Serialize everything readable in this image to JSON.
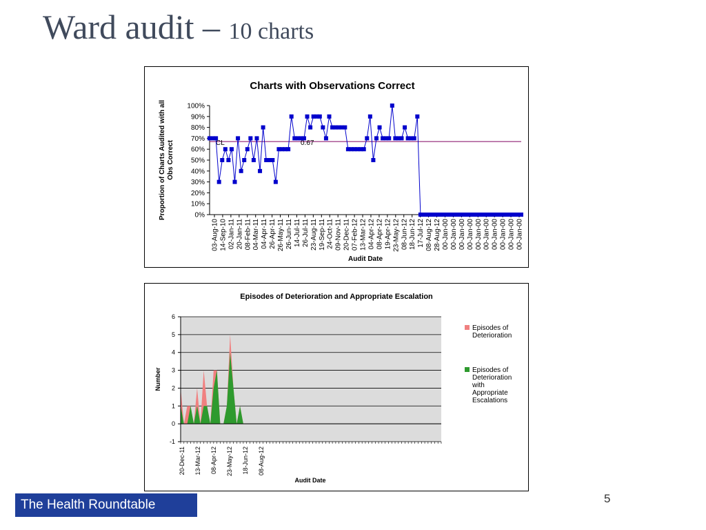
{
  "slide": {
    "title_main": "Ward audit – ",
    "title_sub": "10 charts",
    "brand": "The Health Roundtable",
    "page_number": "5"
  },
  "colors": {
    "title": "#404a5c",
    "series_blue": "#0000cc",
    "cl_line": "#800060",
    "episodes_pink": "#f08080",
    "escalation_green": "#2e9a2e",
    "plot_bg": "#dcdcdc",
    "brand_bg": "#1f3f9a"
  },
  "chart_data": [
    {
      "type": "line",
      "title": "Charts with Observations Correct",
      "xlabel": "Audit Date",
      "ylabel": "Proportion of Charts Audited with all Obs Correct",
      "ylim": [
        0,
        1
      ],
      "yticks": [
        "0%",
        "10%",
        "20%",
        "30%",
        "40%",
        "50%",
        "60%",
        "70%",
        "80%",
        "90%",
        "100%"
      ],
      "tick_labels": [
        "03-Aug-10",
        "14-Sep-10",
        "02-Jan-11",
        "20-Jan-11",
        "08-Feb-11",
        "04-Mar-11",
        "04-Apr-11",
        "26-Apr-11",
        "26-May-11",
        "26-Jun-11",
        "14-Jul-11",
        "26-Jul-11",
        "23-Aug-11",
        "19-Sep-11",
        "24-Oct-11",
        "09-Nov-11",
        "20-Dec-11",
        "07-Feb-12",
        "13-Mar-12",
        "04-Apr-12",
        "08-Apr-12",
        "19-Apr-12",
        "23-May-12",
        "08-Jun-12",
        "18-Jun-12",
        "17-Jul-12",
        "08-Aug-12",
        "28-Aug-12",
        "00-Jan-00",
        "00-Jan-00",
        "00-Jan-00",
        "00-Jan-00",
        "00-Jan-00",
        "00-Jan-00",
        "00-Jan-00",
        "00-Jan-00",
        "00-Jan-00",
        "00-Jan-00"
      ],
      "center_line": 0.67,
      "center_line_label": "CL",
      "center_line_value_label": "0.67",
      "series": [
        {
          "values": [
            0.7,
            0.7,
            0.7,
            0.3,
            0.5,
            0.6,
            0.5,
            0.6,
            0.3,
            0.7,
            0.4,
            0.5,
            0.6,
            0.7,
            0.5,
            0.7,
            0.4,
            0.8,
            0.5,
            0.5,
            0.5,
            0.3,
            0.6,
            0.6,
            0.6,
            0.6,
            0.9,
            0.7,
            0.7,
            0.7,
            0.7,
            0.9,
            0.8,
            0.9,
            0.9,
            0.9,
            0.8,
            0.7,
            0.9,
            0.8,
            0.8,
            0.8,
            0.8,
            0.8,
            0.6,
            0.6,
            0.6,
            0.6,
            0.6,
            0.6,
            0.7,
            0.9,
            0.5,
            0.7,
            0.8,
            0.7,
            0.7,
            0.7,
            1.0,
            0.7,
            0.7,
            0.7,
            0.8,
            0.7,
            0.7,
            0.7,
            0.9,
            0,
            0,
            0,
            0,
            0,
            0,
            0,
            0,
            0,
            0,
            0,
            0,
            0,
            0,
            0,
            0,
            0,
            0,
            0,
            0,
            0,
            0,
            0,
            0,
            0,
            0,
            0,
            0,
            0,
            0,
            0,
            0,
            0
          ]
        }
      ],
      "grid": false,
      "legend": "none"
    },
    {
      "type": "area",
      "title": "Episodes of Deterioration and Appropriate Escalation",
      "xlabel": "Audit Date",
      "ylabel": "Number",
      "ylim": [
        -1,
        6
      ],
      "yticks": [
        "-1",
        "0",
        "1",
        "2",
        "3",
        "4",
        "5",
        "6"
      ],
      "tick_labels": [
        "20-Dec-11",
        "13-Mar-12",
        "08-Apr-12",
        "23-May-12",
        "18-Jun-12",
        "08-Aug-12"
      ],
      "series": [
        {
          "name": "Episodes of Deterioration",
          "values": [
            2,
            0,
            1,
            1,
            0,
            2,
            0,
            3,
            1,
            0,
            3,
            3,
            0,
            0,
            1,
            5,
            2,
            0,
            1,
            0,
            0,
            0,
            0,
            0,
            0,
            0,
            0,
            0,
            0,
            0,
            0,
            0,
            0,
            0,
            0,
            0,
            0,
            0,
            0,
            0,
            0,
            0,
            0,
            0,
            0,
            0,
            0,
            0,
            0,
            0,
            0,
            0,
            0,
            0,
            0,
            0,
            0,
            0,
            0,
            0,
            0,
            0,
            0,
            0,
            0,
            0,
            0,
            0,
            0,
            0,
            0,
            0,
            0,
            0,
            0,
            0,
            0,
            0,
            0,
            0
          ]
        },
        {
          "name": "Episodes of Deterioration with Appropriate Escalations",
          "values": [
            1,
            0,
            0,
            1,
            0,
            1,
            0,
            1,
            1,
            0,
            2,
            3,
            0,
            0,
            1,
            4,
            2,
            0,
            1,
            0,
            0,
            0,
            0,
            0,
            0,
            0,
            0,
            0,
            0,
            0,
            0,
            0,
            0,
            0,
            0,
            0,
            0,
            0,
            0,
            0,
            0,
            0,
            0,
            0,
            0,
            0,
            0,
            0,
            0,
            0,
            0,
            0,
            0,
            0,
            0,
            0,
            0,
            0,
            0,
            0,
            0,
            0,
            0,
            0,
            0,
            0,
            0,
            0,
            0,
            0,
            0,
            0,
            0,
            0,
            0,
            0,
            0,
            0,
            0,
            0
          ]
        }
      ],
      "grid": true,
      "legend": "right"
    }
  ]
}
